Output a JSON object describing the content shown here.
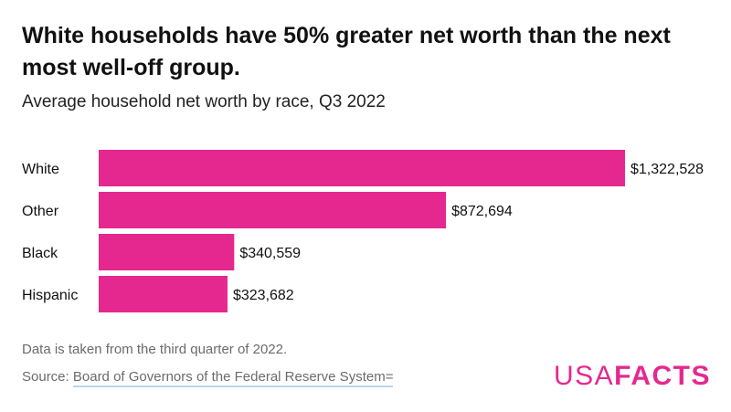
{
  "title": "White households have 50% greater net worth than the next most well-off group.",
  "subtitle": "Average household net worth by race, Q3 2022",
  "chart_data": {
    "type": "bar",
    "orientation": "horizontal",
    "title": "White households have 50% greater net worth than the next most well-off group.",
    "subtitle": "Average household net worth by race, Q3 2022",
    "categories": [
      "White",
      "Other",
      "Black",
      "Hispanic"
    ],
    "values": [
      1322528,
      872694,
      340559,
      323682
    ],
    "data_labels": [
      "$1,322,528",
      "$872,694",
      "$340,559",
      "$323,682"
    ],
    "xlabel": "",
    "ylabel": "",
    "xlim": [
      0,
      1322528
    ],
    "grid": false,
    "legend": "none",
    "bar_color": "#e5288f"
  },
  "footer": {
    "note": "Data is taken from the third quarter of 2022.",
    "source_prefix": "Source: ",
    "source_link": "Board of Governors of the Federal Reserve System="
  },
  "logo": {
    "part1": "USA",
    "part2": "FACTS",
    "color": "#e5288f"
  }
}
